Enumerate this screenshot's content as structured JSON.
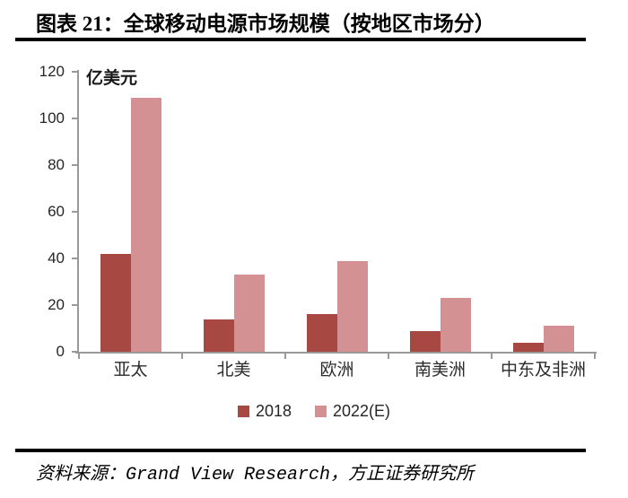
{
  "title": "图表 21：全球移动电源市场规模（按地区市场分）",
  "chart_data": {
    "type": "bar",
    "title": "全球移动电源市场规模（按地区市场分）",
    "unit_label": "亿美元",
    "categories": [
      "亚太",
      "北美",
      "欧洲",
      "南美洲",
      "中东及非洲"
    ],
    "series": [
      {
        "name": "2018",
        "color": "#A84843",
        "values": [
          42,
          14,
          16,
          9,
          4
        ]
      },
      {
        "name": "2022(E)",
        "color": "#D49193",
        "values": [
          109,
          33,
          39,
          23,
          11
        ]
      }
    ],
    "ylim": [
      0,
      120
    ],
    "yticks": [
      0,
      20,
      40,
      60,
      80,
      100,
      120
    ],
    "grid": false,
    "legend_position": "bottom"
  },
  "footer": {
    "source_text": "资料来源：Grand View Research，方正证券研究所"
  },
  "colors": {
    "axis": "#999999",
    "rule": "#000000",
    "series_2018": "#A84843",
    "series_2022e": "#D49193"
  }
}
